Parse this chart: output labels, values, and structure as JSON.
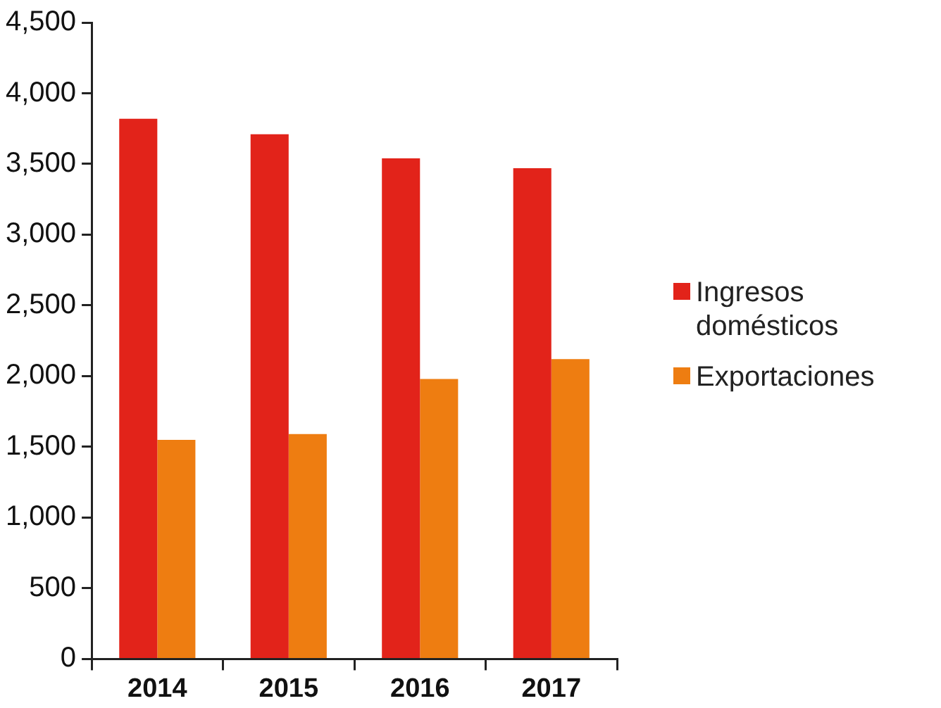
{
  "chart_data": {
    "type": "bar",
    "categories": [
      "2014",
      "2015",
      "2016",
      "2017"
    ],
    "series": [
      {
        "name": "Ingresos domésticos",
        "color": "#e2231a",
        "values": [
          3820,
          3710,
          3540,
          3470
        ]
      },
      {
        "name": "Exportaciones",
        "color": "#ee7d11",
        "values": [
          1550,
          1590,
          1980,
          2120
        ]
      }
    ],
    "ylim": [
      0,
      4500
    ],
    "yticks": [
      0,
      500,
      {
        "value": 1000,
        "label": "1,000"
      },
      {
        "value": 1500,
        "label": "1,500"
      },
      {
        "value": 2000,
        "label": "2,000"
      },
      {
        "value": 2500,
        "label": "2,500"
      },
      {
        "value": 3000,
        "label": "3,000"
      },
      {
        "value": 3500,
        "label": "3,500"
      },
      {
        "value": 4000,
        "label": "4,000"
      },
      {
        "value": 4500,
        "label": "4,500"
      }
    ],
    "grid": false,
    "legend": "right"
  }
}
